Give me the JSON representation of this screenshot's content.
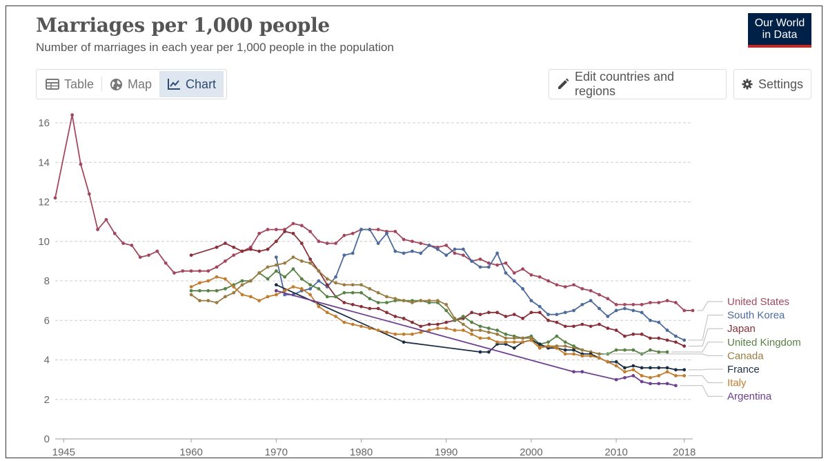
{
  "header": {
    "title": "Marriages per 1,000 people",
    "subtitle": "Number of marriages in each year per 1,000 people in the population",
    "logo_line1": "Our World",
    "logo_line2": "in Data"
  },
  "tabs": [
    {
      "label": "Table",
      "icon": "table-icon",
      "active": false
    },
    {
      "label": "Map",
      "icon": "globe-icon",
      "active": false
    },
    {
      "label": "Chart",
      "icon": "line-chart-icon",
      "active": true
    }
  ],
  "buttons": {
    "edit_label": "Edit countries and regions",
    "settings_label": "Settings"
  },
  "chart_data": {
    "type": "line",
    "title": "Marriages per 1,000 people",
    "xlim": [
      1944,
      2019
    ],
    "ylim": [
      0,
      16
    ],
    "grid": true,
    "x_ticks": [
      1945,
      1960,
      1970,
      1980,
      1990,
      2000,
      2010,
      2018
    ],
    "y_ticks": [
      0,
      2,
      4,
      6,
      8,
      10,
      12,
      14,
      16
    ],
    "legend_placement": "right",
    "series": [
      {
        "name": "United States",
        "color": "#a2475e",
        "x": [
          1944,
          1946,
          1947,
          1948,
          1949,
          1950,
          1951,
          1952,
          1953,
          1954,
          1955,
          1956,
          1957,
          1958,
          1959,
          1960,
          1961,
          1962,
          1963,
          1964,
          1965,
          1966,
          1967,
          1968,
          1969,
          1970,
          1971,
          1972,
          1973,
          1974,
          1975,
          1976,
          1977,
          1978,
          1979,
          1980,
          1981,
          1982,
          1983,
          1984,
          1985,
          1986,
          1987,
          1988,
          1989,
          1990,
          1991,
          1992,
          1993,
          1994,
          1995,
          1996,
          1997,
          1998,
          1999,
          2000,
          2001,
          2002,
          2003,
          2004,
          2005,
          2006,
          2007,
          2008,
          2009,
          2010,
          2011,
          2012,
          2013,
          2014,
          2015,
          2016,
          2017,
          2018,
          2019
        ],
        "y": [
          12.2,
          16.4,
          13.9,
          12.4,
          10.6,
          11.1,
          10.4,
          9.9,
          9.8,
          9.2,
          9.3,
          9.5,
          8.9,
          8.4,
          8.5,
          8.5,
          8.5,
          8.5,
          8.7,
          9.0,
          9.3,
          9.5,
          9.7,
          10.4,
          10.6,
          10.6,
          10.6,
          10.9,
          10.8,
          10.5,
          10.0,
          9.9,
          9.9,
          10.3,
          10.4,
          10.6,
          10.6,
          10.6,
          10.5,
          10.5,
          10.1,
          10.0,
          9.9,
          9.8,
          9.7,
          9.8,
          9.4,
          9.3,
          9.0,
          9.1,
          8.9,
          8.8,
          8.9,
          8.4,
          8.6,
          8.3,
          8.2,
          8.0,
          7.8,
          7.7,
          7.8,
          7.6,
          7.5,
          7.3,
          7.1,
          6.8,
          6.8,
          6.8,
          6.8,
          6.9,
          6.9,
          7.0,
          6.9,
          6.5,
          6.5
        ]
      },
      {
        "name": "South Korea",
        "color": "#4c6a9c",
        "x": [
          1970,
          1971,
          1972,
          1973,
          1974,
          1975,
          1976,
          1977,
          1978,
          1979,
          1980,
          1981,
          1982,
          1983,
          1984,
          1985,
          1986,
          1987,
          1988,
          1989,
          1990,
          1991,
          1992,
          1993,
          1994,
          1995,
          1996,
          1997,
          1998,
          1999,
          2000,
          2001,
          2002,
          2003,
          2004,
          2005,
          2006,
          2007,
          2008,
          2009,
          2010,
          2011,
          2012,
          2013,
          2014,
          2015,
          2016,
          2017,
          2018
        ],
        "y": [
          9.2,
          7.3,
          7.3,
          7.5,
          7.6,
          8.0,
          7.7,
          8.2,
          9.3,
          9.4,
          10.6,
          10.6,
          9.9,
          10.4,
          9.5,
          9.4,
          9.5,
          9.4,
          9.8,
          9.6,
          9.3,
          9.6,
          9.6,
          9.0,
          8.7,
          8.7,
          9.4,
          8.4,
          8.0,
          7.6,
          7.0,
          6.7,
          6.3,
          6.3,
          6.4,
          6.5,
          6.8,
          7.0,
          6.6,
          6.2,
          6.5,
          6.6,
          6.5,
          6.4,
          6.0,
          5.9,
          5.5,
          5.2,
          5.0
        ]
      },
      {
        "name": "Japan",
        "color": "#883039",
        "x": [
          1960,
          1963,
          1964,
          1965,
          1966,
          1967,
          1968,
          1969,
          1970,
          1971,
          1972,
          1973,
          1974,
          1975,
          1976,
          1977,
          1978,
          1979,
          1980,
          1981,
          1982,
          1983,
          1984,
          1985,
          1986,
          1987,
          1988,
          1989,
          1990,
          1991,
          1992,
          1993,
          1994,
          1995,
          1996,
          1997,
          1998,
          1999,
          2000,
          2001,
          2002,
          2003,
          2004,
          2005,
          2006,
          2007,
          2008,
          2009,
          2010,
          2011,
          2012,
          2013,
          2014,
          2015,
          2016,
          2017,
          2018
        ],
        "y": [
          9.3,
          9.7,
          9.9,
          9.7,
          9.5,
          9.6,
          9.5,
          9.6,
          10.0,
          10.5,
          10.4,
          9.9,
          9.1,
          8.5,
          7.8,
          7.2,
          6.9,
          6.8,
          6.7,
          6.6,
          6.6,
          6.4,
          6.2,
          6.1,
          5.9,
          5.7,
          5.8,
          5.8,
          5.9,
          6.0,
          6.1,
          6.4,
          6.3,
          6.4,
          6.4,
          6.2,
          6.3,
          6.1,
          6.4,
          6.4,
          6.0,
          5.9,
          5.7,
          5.7,
          5.8,
          5.7,
          5.8,
          5.6,
          5.5,
          5.2,
          5.3,
          5.3,
          5.1,
          5.1,
          5.0,
          4.9,
          4.7
        ]
      },
      {
        "name": "United Kingdom",
        "color": "#578145",
        "x": [
          1960,
          1961,
          1962,
          1963,
          1964,
          1965,
          1966,
          1967,
          1968,
          1969,
          1970,
          1971,
          1972,
          1973,
          1974,
          1975,
          1976,
          1977,
          1978,
          1979,
          1980,
          1981,
          1982,
          1983,
          1984,
          1985,
          1986,
          1987,
          1988,
          1989,
          1990,
          1991,
          1992,
          1993,
          1994,
          1995,
          1996,
          1997,
          1998,
          1999,
          2000,
          2001,
          2002,
          2003,
          2004,
          2005,
          2006,
          2007,
          2008,
          2009,
          2010,
          2011,
          2012,
          2013,
          2014,
          2015,
          2016
        ],
        "y": [
          7.5,
          7.5,
          7.5,
          7.5,
          7.6,
          7.8,
          8.0,
          8.0,
          8.4,
          8.1,
          8.5,
          8.2,
          8.6,
          8.1,
          7.8,
          7.6,
          7.2,
          7.2,
          7.4,
          7.4,
          7.4,
          7.1,
          6.9,
          6.9,
          7.0,
          7.0,
          7.0,
          7.0,
          6.9,
          6.9,
          6.5,
          6.0,
          6.2,
          5.9,
          5.7,
          5.6,
          5.5,
          5.3,
          5.2,
          5.1,
          5.2,
          4.8,
          4.9,
          5.2,
          4.9,
          4.7,
          4.5,
          4.4,
          4.3,
          4.3,
          4.5,
          4.5,
          4.5,
          4.3,
          4.5,
          4.4,
          4.4
        ]
      },
      {
        "name": "Canada",
        "color": "#9a7b42",
        "x": [
          1960,
          1961,
          1962,
          1963,
          1964,
          1965,
          1966,
          1967,
          1968,
          1969,
          1970,
          1971,
          1972,
          1973,
          1974,
          1975,
          1976,
          1977,
          1978,
          1979,
          1980,
          1981,
          1982,
          1983,
          1984,
          1985,
          1986,
          1987,
          1988,
          1989,
          1990,
          1991,
          1992,
          1993,
          1994,
          1995,
          1996,
          1997,
          1998,
          1999,
          2000,
          2001,
          2002,
          2003,
          2004,
          2005,
          2006,
          2007,
          2008
        ],
        "y": [
          7.3,
          7.0,
          7.0,
          6.9,
          7.2,
          7.4,
          7.8,
          8.0,
          8.4,
          8.7,
          8.8,
          8.9,
          9.2,
          9.0,
          8.9,
          8.5,
          8.1,
          7.9,
          7.8,
          7.8,
          7.8,
          7.6,
          7.4,
          7.2,
          7.1,
          7.0,
          6.9,
          7.0,
          7.0,
          7.0,
          6.8,
          6.1,
          5.8,
          5.5,
          5.5,
          5.4,
          5.3,
          5.1,
          5.1,
          5.1,
          5.1,
          4.7,
          4.7,
          4.7,
          4.7,
          4.6,
          4.5,
          4.4,
          4.3
        ]
      },
      {
        "name": "France",
        "color": "#1c2e44",
        "x": [
          1970,
          1985,
          1994,
          1995,
          1996,
          1997,
          1998,
          1999,
          2000,
          2001,
          2002,
          2003,
          2004,
          2005,
          2006,
          2007,
          2008,
          2009,
          2010,
          2011,
          2012,
          2013,
          2014,
          2015,
          2016,
          2017,
          2018
        ],
        "y": [
          7.8,
          4.9,
          4.4,
          4.4,
          4.8,
          4.8,
          4.6,
          4.9,
          5.0,
          4.8,
          4.6,
          4.6,
          4.5,
          4.5,
          4.3,
          4.3,
          4.1,
          3.9,
          3.9,
          3.6,
          3.7,
          3.6,
          3.6,
          3.6,
          3.6,
          3.5,
          3.5
        ]
      },
      {
        "name": "Italy",
        "color": "#c17c2e",
        "x": [
          1960,
          1961,
          1962,
          1963,
          1964,
          1965,
          1966,
          1967,
          1968,
          1969,
          1970,
          1971,
          1972,
          1973,
          1974,
          1975,
          1976,
          1977,
          1978,
          1979,
          1980,
          1981,
          1982,
          1983,
          1984,
          1985,
          1986,
          1987,
          1988,
          1989,
          1990,
          1991,
          1992,
          1993,
          1994,
          1995,
          1996,
          1997,
          1998,
          1999,
          2000,
          2001,
          2002,
          2003,
          2004,
          2005,
          2006,
          2007,
          2008,
          2009,
          2010,
          2011,
          2012,
          2013,
          2014,
          2015,
          2016,
          2017,
          2018
        ],
        "y": [
          7.7,
          7.9,
          8.0,
          8.2,
          8.1,
          7.7,
          7.3,
          7.2,
          7.0,
          7.2,
          7.3,
          7.5,
          7.7,
          7.6,
          7.3,
          6.7,
          6.4,
          6.2,
          5.9,
          5.8,
          5.7,
          5.6,
          5.5,
          5.4,
          5.3,
          5.3,
          5.3,
          5.4,
          5.5,
          5.6,
          5.6,
          5.5,
          5.5,
          5.3,
          5.1,
          5.1,
          4.9,
          4.9,
          4.9,
          4.9,
          5.0,
          4.6,
          4.7,
          4.6,
          4.3,
          4.3,
          4.2,
          4.2,
          4.1,
          3.9,
          3.7,
          3.4,
          3.5,
          3.2,
          3.1,
          3.2,
          3.4,
          3.2,
          3.2
        ]
      },
      {
        "name": "Argentina",
        "color": "#6d3e91",
        "x": [
          1970,
          2005,
          2006,
          2010,
          2011,
          2012,
          2013,
          2014,
          2015,
          2016,
          2017
        ],
        "y": [
          7.5,
          3.4,
          3.4,
          3.0,
          3.1,
          3.2,
          2.9,
          2.8,
          2.8,
          2.8,
          2.7
        ]
      }
    ]
  }
}
